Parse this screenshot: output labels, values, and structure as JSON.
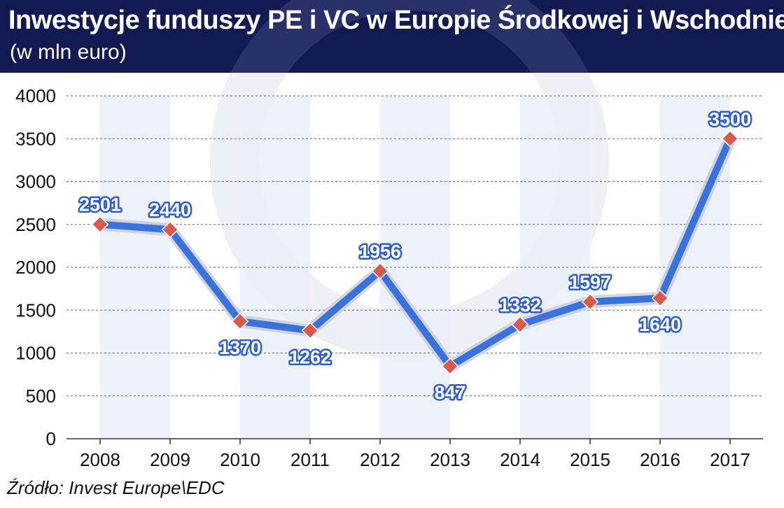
{
  "title": "Inwestycje funduszy PE i VC w Europie Środkowej i Wschodniej",
  "subtitle": "(w mln euro)",
  "source": "Źródło: Invest Europe\\EDC",
  "colors": {
    "header_bg": "#131a52",
    "line": "#3a72dc",
    "marker": "#d85a4e",
    "band": "#e9eefa",
    "label_text": "#ffffff",
    "label_outline": "#2f5fc6"
  },
  "chart_data": {
    "type": "line",
    "title": "Inwestycje funduszy PE i VC w Europie Środkowej i Wschodniej",
    "subtitle": "(w mln euro)",
    "xlabel": "",
    "ylabel": "",
    "categories": [
      "2008",
      "2009",
      "2010",
      "2011",
      "2012",
      "2013",
      "2014",
      "2015",
      "2016",
      "2017"
    ],
    "values": [
      2501,
      2440,
      1370,
      1262,
      1956,
      847,
      1332,
      1597,
      1640,
      3500
    ],
    "data_labels": [
      "2501",
      "2440",
      "1370",
      "1262",
      "1956",
      "847",
      "1332",
      "1597",
      "1640",
      "3500"
    ],
    "label_positions": [
      "above",
      "above",
      "below",
      "below",
      "above",
      "below",
      "above",
      "above",
      "below",
      "above"
    ],
    "ylim": [
      0,
      4000
    ],
    "yticks": [
      0,
      500,
      1000,
      1500,
      2000,
      2500,
      3000,
      3500,
      4000
    ],
    "ytick_labels": [
      "0",
      "500",
      "1000",
      "1500",
      "2000",
      "2500",
      "3000",
      "3500",
      "4000"
    ],
    "grid": "horizontal dashed",
    "legend": "none"
  }
}
